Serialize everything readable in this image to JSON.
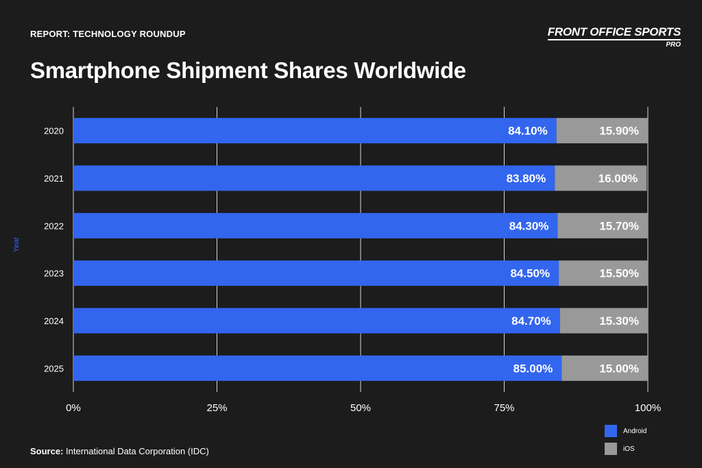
{
  "header": {
    "kicker": "REPORT: TECHNOLOGY ROUNDUP",
    "title": "Smartphone Shipment Shares Worldwide",
    "logo_main": "FRONT OFFICE SPORTS",
    "logo_sub": "PRO"
  },
  "footer": {
    "source_label": "Source:",
    "source_text": "International Data Corporation (IDC)"
  },
  "colors": {
    "android": "#3366ee",
    "ios": "#999999",
    "grid": "#d8d8d8",
    "background": "#1c1c1c",
    "ylabel": "#3366ee"
  },
  "chart_data": {
    "type": "bar",
    "orientation": "horizontal",
    "stacked": true,
    "categories": [
      "2020",
      "2021",
      "2022",
      "2023",
      "2024",
      "2025"
    ],
    "series": [
      {
        "name": "Android",
        "values": [
          84.1,
          83.8,
          84.3,
          84.5,
          84.7,
          85.0
        ],
        "labels": [
          "84.10%",
          "83.80%",
          "84.30%",
          "84.50%",
          "84.70%",
          "85.00%"
        ]
      },
      {
        "name": "iOS",
        "values": [
          15.9,
          16.0,
          15.7,
          15.5,
          15.3,
          15.0
        ],
        "labels": [
          "15.90%",
          "16.00%",
          "15.70%",
          "15.50%",
          "15.30%",
          "15.00%"
        ]
      }
    ],
    "xlim": [
      0,
      100
    ],
    "xticks": [
      0,
      25,
      50,
      75,
      100
    ],
    "xtick_labels": [
      "0%",
      "25%",
      "50%",
      "75%",
      "100%"
    ],
    "xlabel": "",
    "ylabel": "Year",
    "grid": true,
    "legend_position": "bottom-right"
  }
}
